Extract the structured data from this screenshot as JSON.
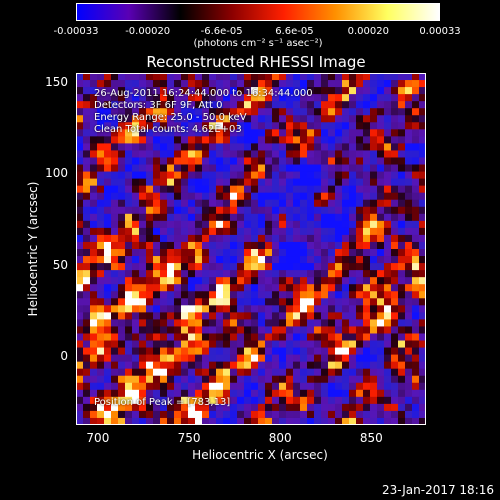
{
  "colorbar": {
    "ticks": [
      "-0.00033",
      "-0.00020",
      "-6.6e-05",
      "6.6e-05",
      "0.00020",
      "0.00033"
    ],
    "tick_values": [
      -0.00033,
      -0.0002,
      -6.6e-05,
      6.6e-05,
      0.0002,
      0.00033
    ],
    "units": "(photons cm⁻² s⁻¹ asec⁻²)",
    "range": [
      -0.00033,
      0.00033
    ],
    "colors": [
      "#0000ff",
      "#5a00b4",
      "#000000",
      "#8c0000",
      "#ff2000",
      "#ff9000",
      "#ffff60",
      "#ffffff"
    ]
  },
  "annotations": {
    "time_range": "26-Aug-2011 16:24:44.000 to 16:34:44.000",
    "detectors": "Detectors: 3F 6F 9F, Att 0",
    "energy": "Energy Range: 25.0 - 50.0 keV",
    "clean": "Clean     Total counts: 4.62E+03",
    "peak": "Position of Peak = [783,13]"
  },
  "footer": {
    "date": "23-Jan-2017 18:16"
  },
  "chart_data": {
    "type": "heatmap",
    "title": "Reconstructed RHESSI Image",
    "xlabel": "Heliocentric X (arcsec)",
    "ylabel": "Heliocentric Y (arcsec)",
    "xlim": [
      688,
      880
    ],
    "ylim": [
      -38,
      155
    ],
    "x_ticks": [
      "700",
      "750",
      "800",
      "850"
    ],
    "x_tick_values": [
      700,
      750,
      800,
      850
    ],
    "y_ticks": [
      "0",
      "50",
      "100",
      "150"
    ],
    "y_tick_values": [
      0,
      50,
      100,
      150
    ],
    "peak_position": [
      783,
      13
    ],
    "total_counts": 4620,
    "energy_range_kev": [
      25.0,
      50.0
    ]
  }
}
